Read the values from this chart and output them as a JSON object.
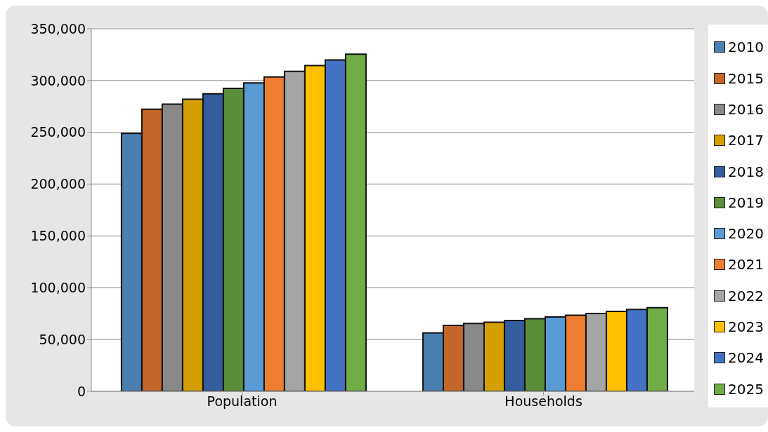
{
  "chart_data": {
    "type": "bar",
    "categories": [
      "Population",
      "Households"
    ],
    "series": [
      {
        "name": "2010",
        "color": "#4a7fb0",
        "values": [
          249000,
          56300
        ]
      },
      {
        "name": "2015",
        "color": "#c4662a",
        "values": [
          272300,
          63700
        ]
      },
      {
        "name": "2016",
        "color": "#898989",
        "values": [
          277200,
          65500
        ]
      },
      {
        "name": "2017",
        "color": "#d4a000",
        "values": [
          282000,
          66700
        ]
      },
      {
        "name": "2018",
        "color": "#345d9e",
        "values": [
          287200,
          68400
        ]
      },
      {
        "name": "2019",
        "color": "#5b8e3a",
        "values": [
          292400,
          70100
        ]
      },
      {
        "name": "2020",
        "color": "#5b9bd5",
        "values": [
          297700,
          71800
        ]
      },
      {
        "name": "2021",
        "color": "#ed7d31",
        "values": [
          303400,
          73400
        ]
      },
      {
        "name": "2022",
        "color": "#a5a5a5",
        "values": [
          308800,
          75200
        ]
      },
      {
        "name": "2023",
        "color": "#ffc000",
        "values": [
          314400,
          77200
        ]
      },
      {
        "name": "2024",
        "color": "#4472c4",
        "values": [
          319800,
          79000
        ]
      },
      {
        "name": "2025",
        "color": "#70ad47",
        "values": [
          325500,
          80800
        ]
      }
    ],
    "ylim": [
      0,
      350000
    ],
    "yticks": [
      0,
      {
        "value": 50000,
        "label": "50,000"
      },
      {
        "value": 100000,
        "label": "100,000"
      },
      {
        "value": 150000,
        "label": "150,000"
      },
      {
        "value": 200000,
        "label": "200,000"
      },
      {
        "value": 250000,
        "label": "250,000"
      },
      {
        "value": 300000,
        "label": "300,000"
      },
      {
        "value": 350000,
        "label": "350,000"
      }
    ],
    "grid": "y",
    "legend": "right"
  }
}
